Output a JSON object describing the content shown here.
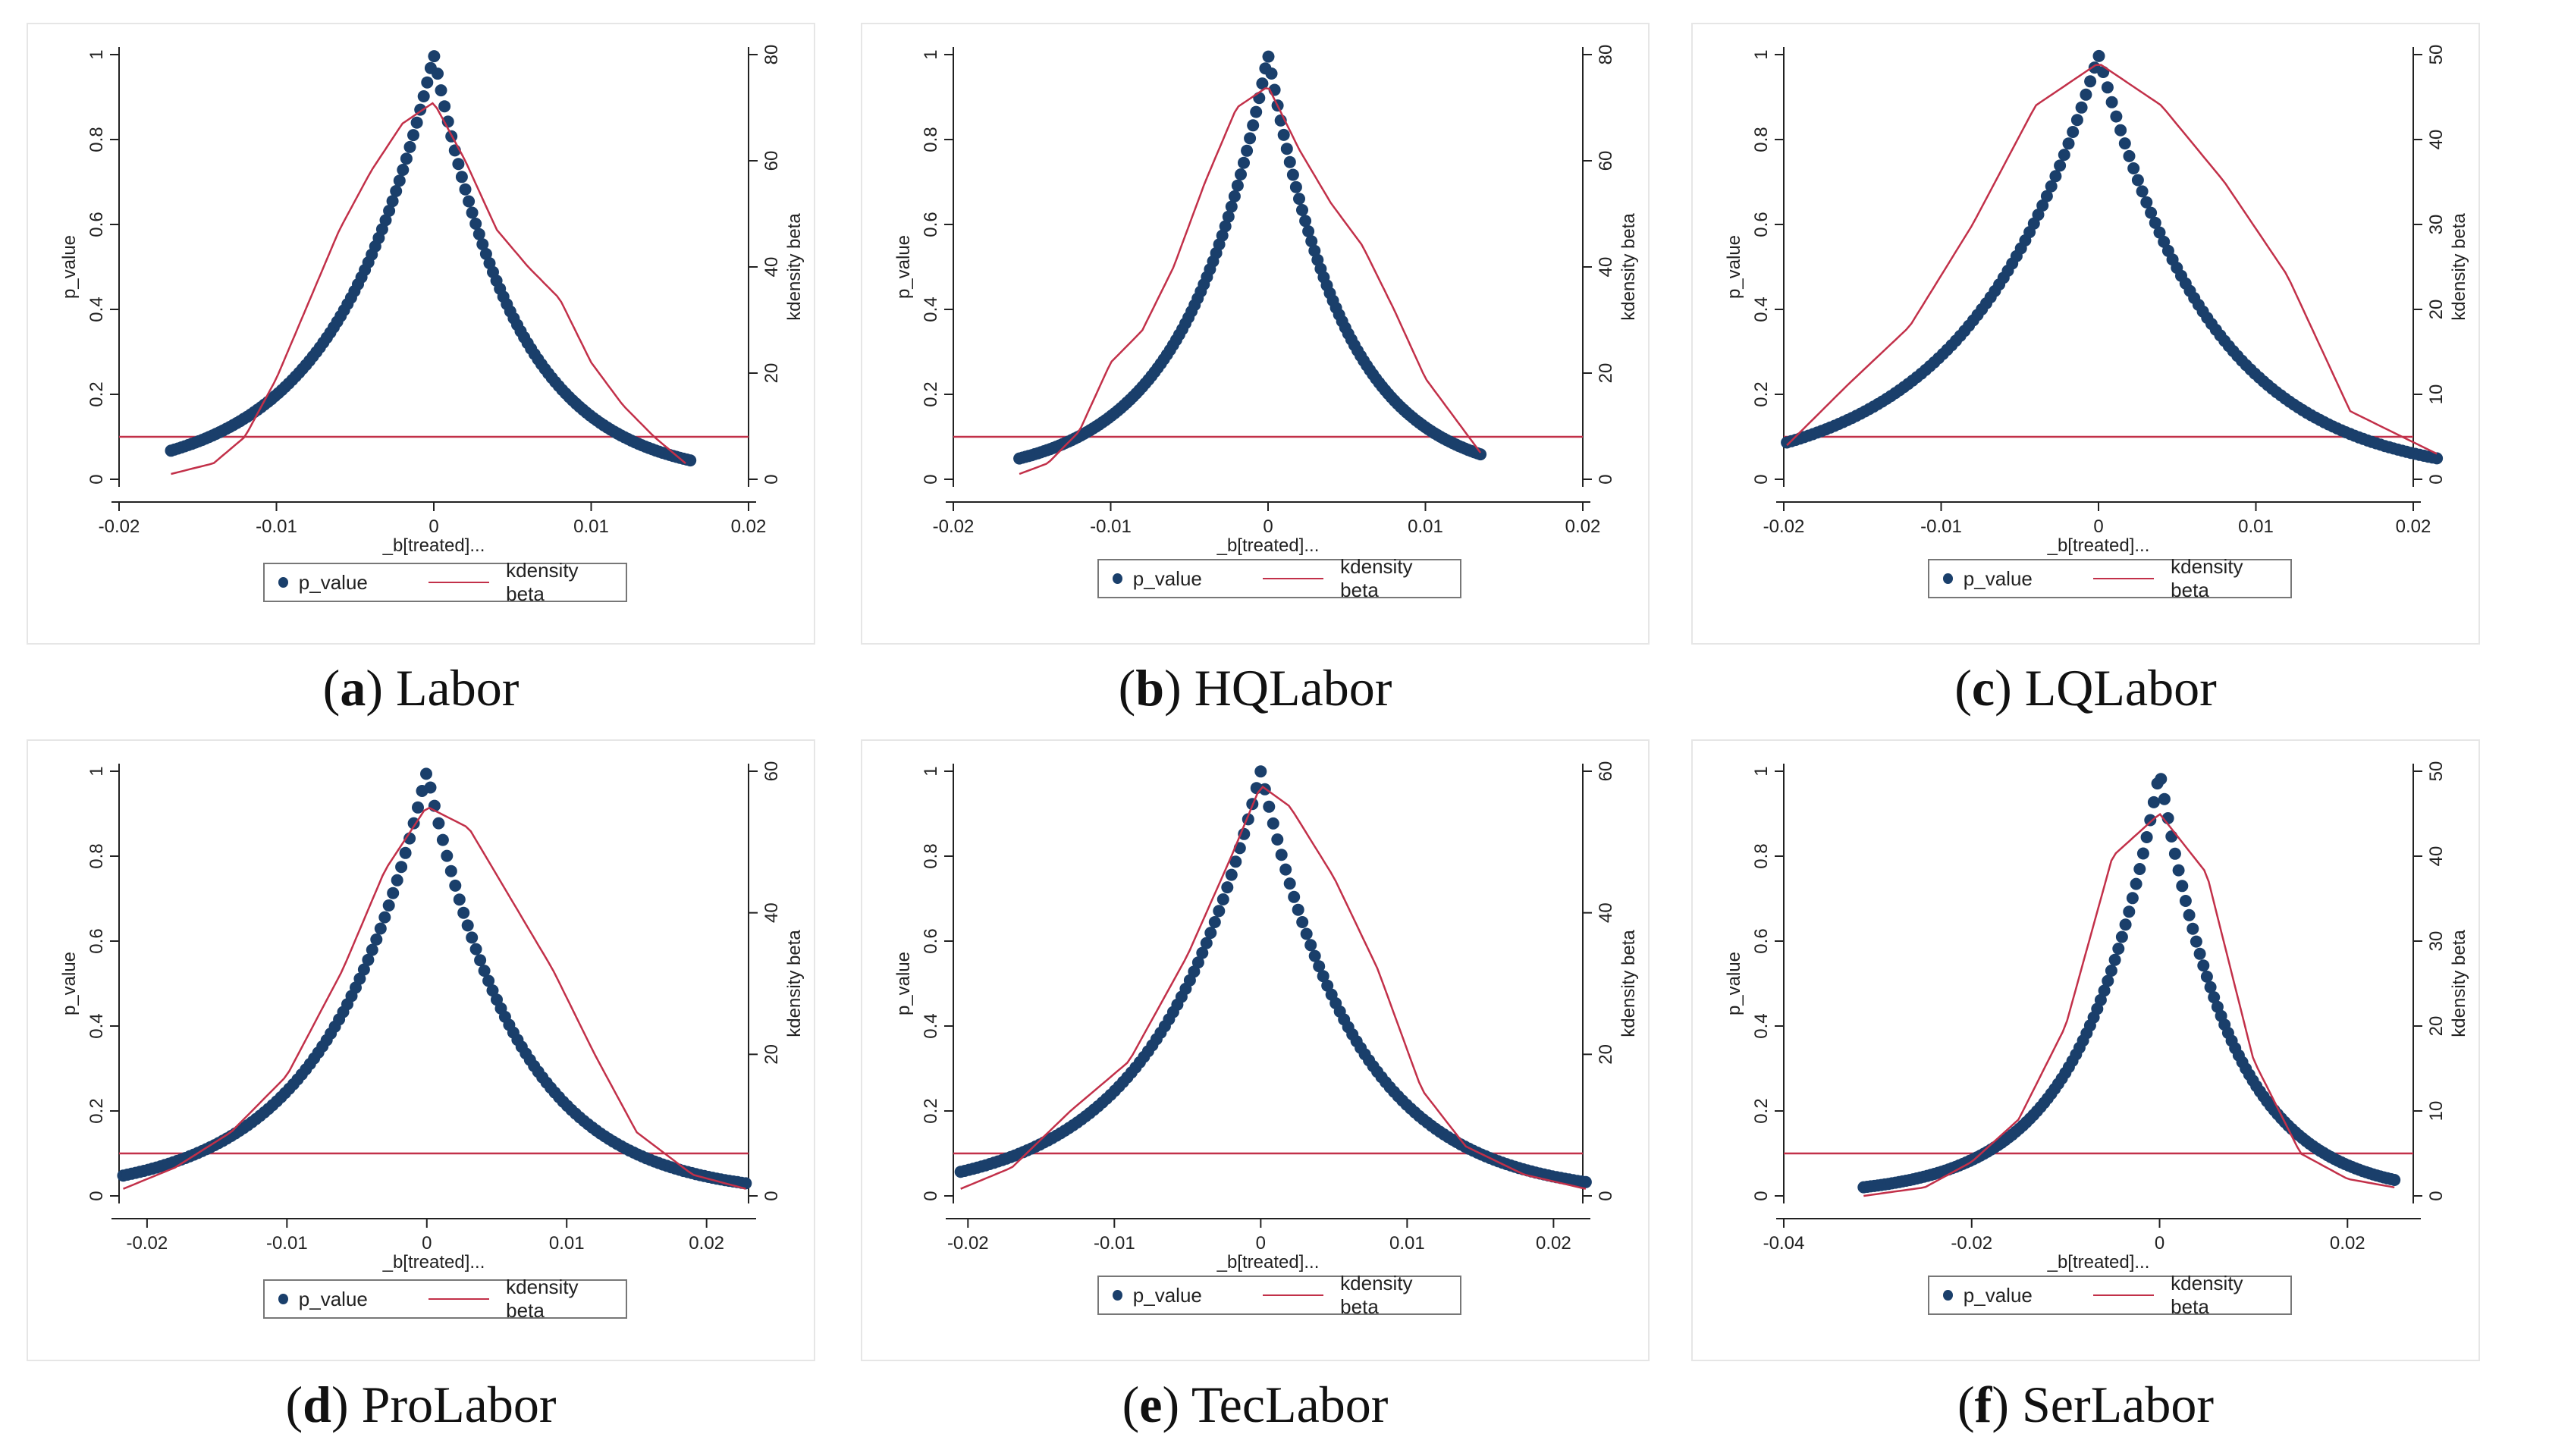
{
  "figure": {
    "panels": [
      {
        "letter": "a",
        "name": "Labor"
      },
      {
        "letter": "b",
        "name": "HQLabor"
      },
      {
        "letter": "c",
        "name": "LQLabor"
      },
      {
        "letter": "d",
        "name": "ProLabor"
      },
      {
        "letter": "e",
        "name": "TecLabor"
      },
      {
        "letter": "f",
        "name": "SerLabor"
      }
    ]
  },
  "colors": {
    "points": "#1a3f6b",
    "density": "#c23049",
    "reference": "#c23049"
  },
  "chart_data": [
    {
      "type": "scatter",
      "xlabel": "_b[treated]...",
      "ylabel": "p_value",
      "y2label": "kdensity beta",
      "xlim": [
        -0.02,
        0.02
      ],
      "xticks": [
        -0.02,
        -0.01,
        0,
        0.01,
        0.02
      ],
      "xticklabels": [
        "-0.02",
        "-0.01",
        "0",
        "0.01",
        "0.02"
      ],
      "ylim": [
        0,
        1
      ],
      "yticks": [
        0,
        0.2,
        0.4,
        0.6,
        0.8,
        1
      ],
      "yticklabels": [
        "0",
        "0.2",
        "0.4",
        "0.6",
        "0.8",
        "1"
      ],
      "y2lim": [
        0,
        80
      ],
      "y2ticks": [
        0,
        20,
        40,
        60,
        80
      ],
      "y2ticklabels": [
        "0",
        "20",
        "40",
        "60",
        "80"
      ],
      "legend": [
        "p_value",
        "kdensity beta"
      ],
      "legend_position": "bottom",
      "reference_line_y": 0.1,
      "p_value": {
        "x_min": -0.0167,
        "x_max": 0.0163,
        "peak_x": 0.0,
        "left_width": 0.0065,
        "right_width": 0.0055
      },
      "kdensity_beta": {
        "x": [
          -0.0167,
          -0.014,
          -0.012,
          -0.01,
          -0.008,
          -0.006,
          -0.004,
          -0.002,
          0,
          0.002,
          0.004,
          0.006,
          0.008,
          0.01,
          0.012,
          0.014,
          0.016
        ],
        "y": [
          1,
          3,
          8,
          19,
          33,
          47,
          58,
          67,
          71,
          60,
          47,
          40,
          34,
          22,
          14,
          8,
          3
        ]
      }
    },
    {
      "type": "scatter",
      "xlabel": "_b[treated]...",
      "ylabel": "p_value",
      "y2label": "kdensity beta",
      "xlim": [
        -0.02,
        0.02
      ],
      "xticks": [
        -0.02,
        -0.01,
        0,
        0.01,
        0.02
      ],
      "xticklabels": [
        "-0.02",
        "-0.01",
        "0",
        "0.01",
        "0.02"
      ],
      "ylim": [
        0,
        1
      ],
      "yticks": [
        0,
        0.2,
        0.4,
        0.6,
        0.8,
        1
      ],
      "yticklabels": [
        "0",
        "0.2",
        "0.4",
        "0.6",
        "0.8",
        "1"
      ],
      "y2lim": [
        0,
        80
      ],
      "y2ticks": [
        0,
        20,
        40,
        60,
        80
      ],
      "y2ticklabels": [
        "0",
        "20",
        "40",
        "60",
        "80"
      ],
      "legend": [
        "p_value",
        "kdensity beta"
      ],
      "legend_position": "bottom",
      "reference_line_y": 0.1,
      "p_value": {
        "x_min": -0.0158,
        "x_max": 0.0135,
        "peak_x": 0.0,
        "left_width": 0.0055,
        "right_width": 0.005
      },
      "kdensity_beta": {
        "x": [
          -0.0158,
          -0.014,
          -0.012,
          -0.01,
          -0.008,
          -0.006,
          -0.004,
          -0.002,
          0,
          0.002,
          0.004,
          0.006,
          0.008,
          0.01,
          0.0135
        ],
        "y": [
          1,
          3,
          9,
          22,
          28,
          40,
          56,
          70,
          74,
          62,
          52,
          44,
          32,
          19,
          5
        ]
      }
    },
    {
      "type": "scatter",
      "xlabel": "_b[treated]...",
      "ylabel": "p_value",
      "y2label": "kdensity beta",
      "xlim": [
        -0.02,
        0.02
      ],
      "xticks": [
        -0.02,
        -0.01,
        0,
        0.01,
        0.02
      ],
      "xticklabels": [
        "-0.02",
        "-0.01",
        "0",
        "0.01",
        "0.02"
      ],
      "ylim": [
        0,
        1
      ],
      "yticks": [
        0,
        0.2,
        0.4,
        0.6,
        0.8,
        1
      ],
      "yticklabels": [
        "0",
        "0.2",
        "0.4",
        "0.6",
        "0.8",
        "1"
      ],
      "y2lim": [
        0,
        50
      ],
      "y2ticks": [
        0,
        10,
        20,
        30,
        40,
        50
      ],
      "y2ticklabels": [
        "0",
        "10",
        "20",
        "30",
        "40",
        "50"
      ],
      "legend": [
        "p_value",
        "kdensity beta"
      ],
      "legend_position": "bottom",
      "reference_line_y": 0.1,
      "p_value": {
        "x_min": -0.0198,
        "x_max": 0.0215,
        "peak_x": 0.0,
        "left_width": 0.0085,
        "right_width": 0.0075
      },
      "kdensity_beta": {
        "x": [
          -0.0198,
          -0.016,
          -0.012,
          -0.008,
          -0.004,
          0,
          0.004,
          0.008,
          0.012,
          0.016,
          0.0215
        ],
        "y": [
          4,
          11,
          18,
          30,
          44,
          49,
          44,
          35,
          24,
          8,
          3
        ]
      }
    },
    {
      "type": "scatter",
      "xlabel": "_b[treated]...",
      "ylabel": "p_value",
      "y2label": "kdensity beta",
      "xlim": [
        -0.022,
        0.023
      ],
      "xticks": [
        -0.02,
        -0.01,
        0,
        0.01,
        0.02
      ],
      "xticklabels": [
        "-0.02",
        "-0.01",
        "0",
        "0.01",
        "0.02"
      ],
      "ylim": [
        0,
        1
      ],
      "yticks": [
        0,
        0.2,
        0.4,
        0.6,
        0.8,
        1
      ],
      "yticklabels": [
        "0",
        "0.2",
        "0.4",
        "0.6",
        "0.8",
        "1"
      ],
      "y2lim": [
        0,
        60
      ],
      "y2ticks": [
        0,
        20,
        40,
        60
      ],
      "y2ticklabels": [
        "0",
        "20",
        "40",
        "60"
      ],
      "legend": [
        "p_value",
        "kdensity beta"
      ],
      "legend_position": "bottom",
      "reference_line_y": 0.1,
      "p_value": {
        "x_min": -0.0217,
        "x_max": 0.0228,
        "peak_x": 0.0,
        "left_width": 0.0075,
        "right_width": 0.0068
      },
      "kdensity_beta": {
        "x": [
          -0.0217,
          -0.018,
          -0.014,
          -0.01,
          -0.006,
          -0.003,
          0,
          0.003,
          0.006,
          0.009,
          0.012,
          0.015,
          0.019,
          0.0228
        ],
        "y": [
          1,
          4,
          9,
          17,
          32,
          46,
          55,
          52,
          42,
          32,
          20,
          9,
          3,
          1
        ]
      }
    },
    {
      "type": "scatter",
      "xlabel": "_b[treated]...",
      "ylabel": "p_value",
      "y2label": "kdensity beta",
      "xlim": [
        -0.021,
        0.022
      ],
      "xticks": [
        -0.02,
        -0.01,
        0,
        0.01,
        0.02
      ],
      "xticklabels": [
        "-0.02",
        "-0.01",
        "0",
        "0.01",
        "0.02"
      ],
      "ylim": [
        0,
        1
      ],
      "yticks": [
        0,
        0.2,
        0.4,
        0.6,
        0.8,
        1
      ],
      "yticklabels": [
        "0",
        "0.2",
        "0.4",
        "0.6",
        "0.8",
        "1"
      ],
      "y2lim": [
        0,
        60
      ],
      "y2ticks": [
        0,
        20,
        40,
        60
      ],
      "y2ticklabels": [
        "0",
        "20",
        "40",
        "60"
      ],
      "legend": [
        "p_value",
        "kdensity beta"
      ],
      "legend_position": "bottom",
      "reference_line_y": 0.1,
      "p_value": {
        "x_min": -0.0205,
        "x_max": 0.0222,
        "peak_x": 0.0,
        "left_width": 0.0075,
        "right_width": 0.0068
      },
      "kdensity_beta": {
        "x": [
          -0.0205,
          -0.017,
          -0.013,
          -0.009,
          -0.005,
          -0.002,
          0,
          0.002,
          0.005,
          0.008,
          0.011,
          0.014,
          0.018,
          0.0222
        ],
        "y": [
          1,
          4,
          12,
          19,
          34,
          48,
          58,
          55,
          45,
          32,
          15,
          7,
          3,
          1
        ]
      }
    },
    {
      "type": "scatter",
      "xlabel": "_b[treated]...",
      "ylabel": "p_value",
      "y2label": "kdensity beta",
      "xlim": [
        -0.04,
        0.027
      ],
      "xticks": [
        -0.04,
        -0.02,
        0,
        0.02
      ],
      "xticklabels": [
        "-0.04",
        "-0.02",
        "0",
        "0.02"
      ],
      "ylim": [
        0,
        1
      ],
      "yticks": [
        0,
        0.2,
        0.4,
        0.6,
        0.8,
        1
      ],
      "yticklabels": [
        "0",
        "0.2",
        "0.4",
        "0.6",
        "0.8",
        "1"
      ],
      "y2lim": [
        0,
        50
      ],
      "y2ticks": [
        0,
        10,
        20,
        30,
        40,
        50
      ],
      "y2ticklabels": [
        "0",
        "10",
        "20",
        "30",
        "40",
        "50"
      ],
      "legend": [
        "p_value",
        "kdensity beta"
      ],
      "legend_position": "bottom",
      "reference_line_y": 0.1,
      "p_value": {
        "x_min": -0.0315,
        "x_max": 0.025,
        "peak_x": 0.0,
        "left_width": 0.0085,
        "right_width": 0.008
      },
      "kdensity_beta": {
        "x": [
          -0.0315,
          -0.025,
          -0.02,
          -0.015,
          -0.01,
          -0.005,
          0,
          0.005,
          0.01,
          0.015,
          0.02,
          0.025
        ],
        "y": [
          0,
          1,
          4,
          9,
          20,
          40,
          45,
          38,
          16,
          5,
          2,
          1
        ]
      }
    }
  ]
}
